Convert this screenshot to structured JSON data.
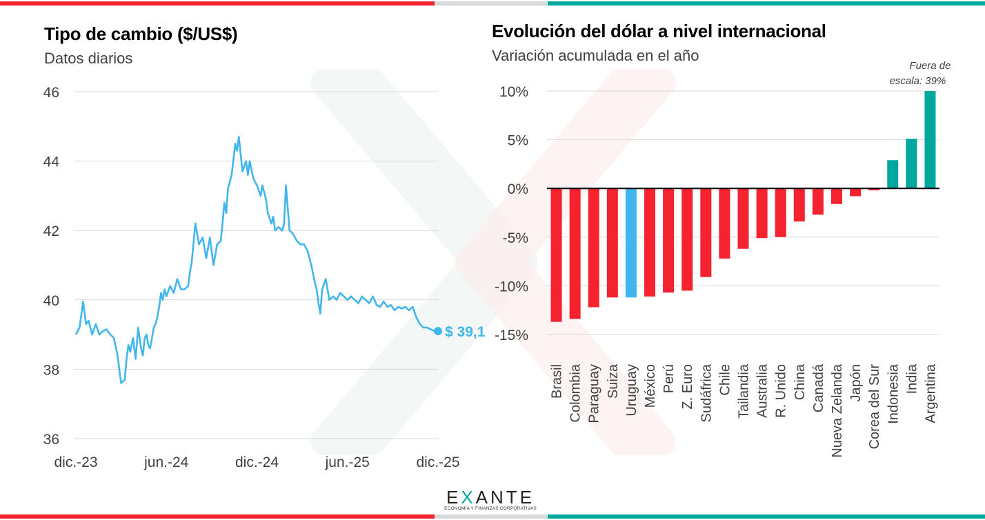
{
  "left_panel": {
    "title": "Tipo de cambio ($/US$)",
    "subtitle": "Datos diarios",
    "last_value_label": "$ 39,1"
  },
  "right_panel": {
    "title": "Evolución del dólar a nivel internacional",
    "subtitle": "Variación acumulada en el año",
    "annotation_line1": "Fuera de",
    "annotation_line2": "escala: 39%"
  },
  "logo": {
    "word_prefix": "E",
    "word_x": "X",
    "word_suffix": "ANTE",
    "tagline": "ECONOMÍA Y FINANZAS CORPORATIVAS"
  },
  "colors": {
    "line": "#41b6ec",
    "negative": "#f5222f",
    "positive": "#00a79d",
    "highlight": "#41b6ec",
    "grid": "#d9d9d9"
  },
  "chart_data": [
    {
      "type": "line",
      "title": "Tipo de cambio ($/US$)",
      "subtitle": "Datos diarios",
      "xlabel": "",
      "ylabel": "",
      "x_ticks": [
        "dic.-23",
        "jun.-24",
        "dic.-24",
        "jun.-25",
        "dic.-25"
      ],
      "y_ticks": [
        36,
        38,
        40,
        42,
        44,
        46
      ],
      "ylim": [
        36,
        46
      ],
      "grid": true,
      "series": [
        {
          "name": "Tipo de cambio",
          "x_frac": [
            0,
            0.01,
            0.02,
            0.028,
            0.035,
            0.045,
            0.055,
            0.065,
            0.075,
            0.085,
            0.095,
            0.105,
            0.115,
            0.125,
            0.135,
            0.14,
            0.145,
            0.15,
            0.158,
            0.165,
            0.172,
            0.18,
            0.185,
            0.19,
            0.195,
            0.2,
            0.205,
            0.21,
            0.215,
            0.22,
            0.225,
            0.23,
            0.235,
            0.24,
            0.245,
            0.25,
            0.26,
            0.27,
            0.28,
            0.29,
            0.3,
            0.31,
            0.315,
            0.32,
            0.33,
            0.34,
            0.35,
            0.36,
            0.37,
            0.38,
            0.39,
            0.4,
            0.405,
            0.41,
            0.415,
            0.42,
            0.43,
            0.44,
            0.445,
            0.45,
            0.455,
            0.46,
            0.47,
            0.475,
            0.48,
            0.49,
            0.5,
            0.51,
            0.515,
            0.52,
            0.525,
            0.53,
            0.54,
            0.545,
            0.55,
            0.56,
            0.57,
            0.575,
            0.58,
            0.59,
            0.6,
            0.61,
            0.62,
            0.63,
            0.64,
            0.65,
            0.66,
            0.665,
            0.67,
            0.675,
            0.68,
            0.69,
            0.7,
            0.71,
            0.72,
            0.73,
            0.74,
            0.75,
            0.76,
            0.77,
            0.78,
            0.79,
            0.8,
            0.81,
            0.82,
            0.825,
            0.83,
            0.84,
            0.85,
            0.86,
            0.87,
            0.88,
            0.89,
            0.9,
            0.91,
            0.92,
            0.93,
            0.94,
            0.95,
            0.96,
            0.97,
            0.98,
            0.99,
            1.0
          ],
          "values": [
            39.0,
            39.2,
            39.95,
            39.3,
            39.4,
            39.0,
            39.3,
            39.0,
            39.1,
            39.15,
            39.0,
            38.9,
            38.4,
            37.6,
            37.7,
            38.3,
            38.7,
            38.5,
            38.9,
            38.3,
            39.2,
            38.6,
            38.4,
            38.9,
            39.0,
            38.7,
            38.6,
            38.9,
            39.2,
            39.3,
            39.5,
            39.8,
            40.2,
            40.0,
            40.3,
            40.1,
            40.4,
            40.2,
            40.6,
            40.3,
            40.3,
            40.4,
            40.8,
            41.1,
            42.2,
            41.6,
            41.8,
            41.2,
            41.8,
            41.0,
            41.6,
            41.7,
            42.2,
            42.8,
            42.5,
            43.2,
            43.6,
            44.5,
            44.3,
            44.7,
            44.2,
            43.7,
            44.0,
            43.6,
            44.0,
            43.5,
            43.3,
            43.0,
            43.3,
            43.1,
            42.9,
            42.5,
            42.2,
            42.4,
            42.0,
            42.1,
            42.0,
            42.2,
            43.3,
            42.0,
            41.9,
            41.7,
            41.6,
            41.6,
            41.4,
            41.0,
            40.5,
            40.3,
            39.9,
            39.6,
            40.3,
            40.6,
            40.0,
            40.1,
            40.0,
            40.2,
            40.1,
            40.0,
            40.1,
            40.0,
            39.9,
            40.1,
            40.0,
            39.9,
            40.1,
            40.0,
            39.85,
            39.8,
            39.95,
            39.8,
            39.85,
            39.7,
            39.8,
            39.75,
            39.8,
            39.7,
            39.8,
            39.5,
            39.3,
            39.2,
            39.2,
            39.15,
            39.1,
            39.1
          ]
        }
      ],
      "annotations": [
        {
          "text": "$ 39,1",
          "x": "dic.-25",
          "y": 39.1
        }
      ]
    },
    {
      "type": "bar",
      "title": "Evolución del dólar a nivel internacional",
      "subtitle": "Variación acumulada en el año",
      "xlabel": "",
      "ylabel": "",
      "categories": [
        "Brasil",
        "Colombia",
        "Paraguay",
        "Suiza",
        "Uruguay",
        "México",
        "Perú",
        "Z. Euro",
        "Sudáfrica",
        "Chile",
        "Tailandia",
        "Australia",
        "R. Unido",
        "China",
        "Canadá",
        "Nueva Zelanda",
        "Japón",
        "Corea del Sur",
        "Indonesia",
        "India",
        "Argentina"
      ],
      "values": [
        -13.7,
        -13.4,
        -12.2,
        -11.2,
        -11.2,
        -11.1,
        -10.7,
        -10.5,
        -9.1,
        -7.2,
        -6.2,
        -5.1,
        -5.0,
        -3.4,
        -2.7,
        -1.6,
        -0.8,
        -0.2,
        2.9,
        5.1,
        39.0
      ],
      "highlight": "Uruguay",
      "y_ticks": [
        -15,
        -10,
        -5,
        0,
        5,
        10
      ],
      "y_tick_labels": [
        "-15%",
        "-10%",
        "-5%",
        "0%",
        "5%",
        "10%"
      ],
      "ylim": [
        -15,
        10
      ],
      "grid": true,
      "annotations": [
        {
          "text": "Fuera de escala: 39%",
          "category": "Argentina"
        }
      ]
    }
  ]
}
